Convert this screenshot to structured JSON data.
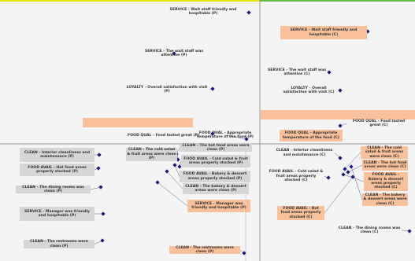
{
  "nodes": [
    {
      "label": "SERVICE - Wait staff friendly and hospitable (P)"
    },
    {
      "label": "SERVICE - The wait staff was attentive (P)"
    },
    {
      "label": "LOYALTY - Overall satisfaction with visit (P)"
    },
    {
      "label": "FOOD QUAL - Food tasted great (P)"
    },
    {
      "label": "FOOD QUAL - Appropriate temperature of the food (P)"
    },
    {
      "label": "SERVICE - Wait staff friendly and hospitable (C)"
    },
    {
      "label": "SERVICE - The wait staff was attentive (C)"
    },
    {
      "label": "LOYALTY - Overall satisfaction with visit (C)"
    },
    {
      "label": "FOOD QUAL - Food tasted great (C)"
    },
    {
      "label": "FOOD QUAL - Appropriate temperature of the food (C)"
    },
    {
      "label": "CLEAN - Interior cleanliness and maintenance (P)"
    },
    {
      "label": "FOOD AVAIL - Hot food areas properly stocked (P)"
    },
    {
      "label": "CLEAN - The dining rooms was clean (P)"
    },
    {
      "label": "SERVICE - Manager was friendly and hospitable (P)"
    },
    {
      "label": "CLEAN - The restrooms were clean (P)"
    },
    {
      "label": "CLEAN - The cold salad & fruit areas were clean (P)"
    },
    {
      "label": "CLEAN - The hot food areas were clean (P)"
    },
    {
      "label": "FOOD AVAIL - Cold salad & fruit areas properly stocked (P)"
    },
    {
      "label": "FOOD AVAIL - Bakery & dessert areas properly stocked (P)"
    },
    {
      "label": "CLEAN - The bakery & dessert areas were clean (P)"
    },
    {
      "label": "SERVICE - Manager was friendly and hospitable (P)"
    },
    {
      "label": "CLEAN - The restrooms were clean (P)"
    },
    {
      "label": "CLEAN - Interior cleanliness and maintenance (C)"
    },
    {
      "label": "FOOD AVAIL - Cold salad & fruit areas properly stocked (C)"
    },
    {
      "label": "CLEAN - The cold salad & fruit areas were clean (C)"
    },
    {
      "label": "CLEAN - The hot food areas were clean (C)"
    },
    {
      "label": "FOOD AVAIL - Bakery & dessert areas properly stocked (C)"
    },
    {
      "label": "CLEAN - The bakery & dessert areas were clean (C)"
    },
    {
      "label": "FOOD AVAIL - Hot food areas properly stocked (C)"
    },
    {
      "label": "CLEAN - The dining rooms was clean (C)"
    }
  ]
}
